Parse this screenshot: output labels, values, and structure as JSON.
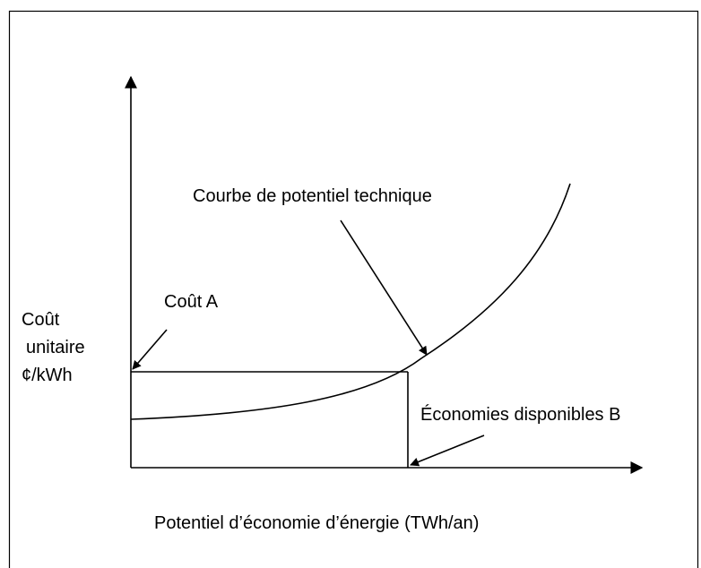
{
  "diagram": {
    "curve_label": "Courbe de potentiel technique",
    "y_axis_label": [
      "Coût",
      "unitaire",
      "¢/kWh"
    ],
    "cost_label": "Coût A",
    "savings_label": "Économies disponibles B",
    "x_axis_label": "Potentiel d’économie d’énergie (TWh/an)"
  }
}
